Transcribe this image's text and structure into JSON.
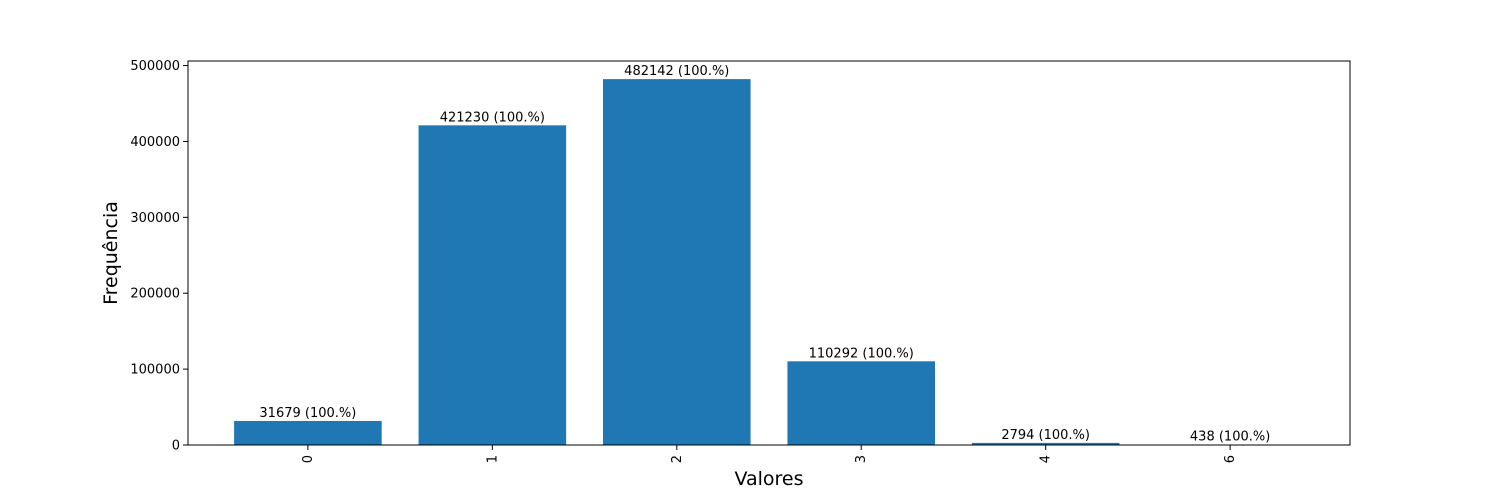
{
  "chart_data": {
    "type": "bar",
    "categories": [
      "0",
      "1",
      "2",
      "3",
      "4",
      "6"
    ],
    "values": [
      31679,
      421230,
      482142,
      110292,
      2794,
      438
    ],
    "data_labels": [
      "31679 (100.%)",
      "421230 (100.%)",
      "482142 (100.%)",
      "110292 (100.%)",
      "2794 (100.%)",
      "438 (100.%)"
    ],
    "title": "",
    "xlabel": "Valores",
    "ylabel": "Frequência",
    "ylim": [
      0,
      506000
    ],
    "yticks": [
      0,
      100000,
      200000,
      300000,
      400000,
      500000
    ],
    "ytick_labels": [
      "0",
      "100000",
      "200000",
      "300000",
      "400000",
      "500000"
    ],
    "bar_color": "#1f77b4",
    "grid": false,
    "legend": "none",
    "xtick_rotation": "vertical"
  }
}
